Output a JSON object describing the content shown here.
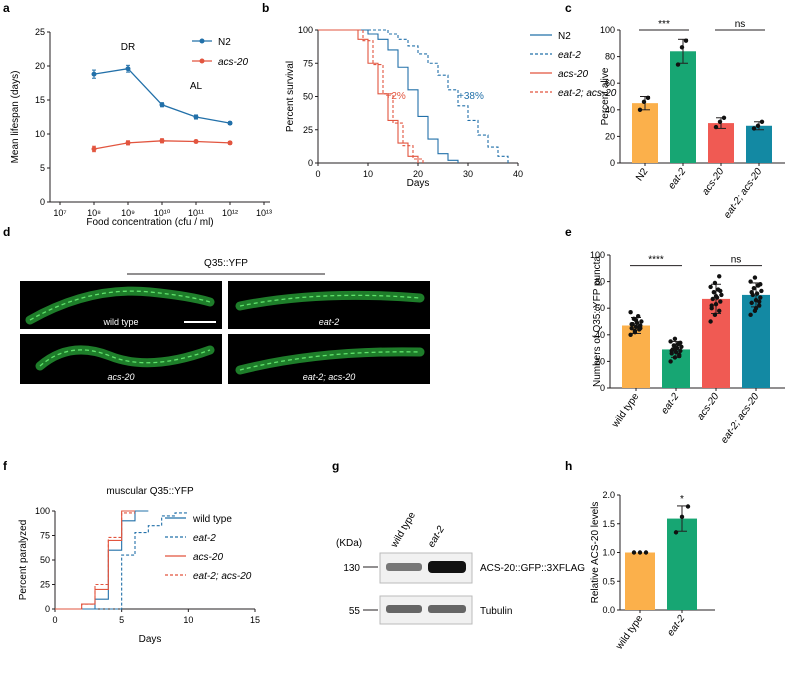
{
  "chart_data": [
    {
      "panel": "a",
      "type": "line",
      "xlabel": "Food concentration (cfu / ml)",
      "ylabel": "Mean lifespan (days)",
      "xticks": [
        "10⁷",
        "10⁸",
        "10⁹",
        "10¹⁰",
        "10¹¹",
        "10¹²",
        "10¹³"
      ],
      "yticks": [
        "0",
        "5",
        "10",
        "15",
        "20",
        "25"
      ],
      "ylim": [
        0,
        25
      ],
      "x": [
        8,
        9,
        10,
        11,
        12
      ],
      "series": [
        {
          "name": "N2",
          "values": [
            18.8,
            19.6,
            14.3,
            12.5,
            11.6
          ],
          "err": [
            0.6,
            0.5,
            0.3,
            0.3,
            0.2
          ],
          "color": "#2270a9"
        },
        {
          "name": "acs-20",
          "values": [
            7.8,
            8.7,
            9.0,
            8.9,
            8.7
          ],
          "err": [
            0.4,
            0.3,
            0.3,
            0.2,
            0.2
          ],
          "color": "#e2553f"
        }
      ],
      "annotations": [
        "DR",
        "AL"
      ]
    },
    {
      "panel": "b",
      "type": "line",
      "xlabel": "Days",
      "ylabel": "Percent survival",
      "xticks": [
        "0",
        "10",
        "20",
        "30",
        "40"
      ],
      "yticks": [
        "0",
        "25",
        "50",
        "75",
        "100"
      ],
      "xlim": [
        0,
        40
      ],
      "ylim": [
        0,
        100
      ],
      "series": [
        {
          "name": "N2",
          "values": [
            [
              0,
              100
            ],
            [
              8,
              100
            ],
            [
              10,
              97
            ],
            [
              12,
              93
            ],
            [
              14,
              85
            ],
            [
              16,
              72
            ],
            [
              18,
              55
            ],
            [
              20,
              35
            ],
            [
              22,
              18
            ],
            [
              24,
              7
            ],
            [
              26,
              2
            ],
            [
              28,
              0
            ]
          ],
          "color": "#2270a9",
          "dash": false
        },
        {
          "name": "eat-2",
          "values": [
            [
              0,
              100
            ],
            [
              12,
              100
            ],
            [
              14,
              97
            ],
            [
              16,
              93
            ],
            [
              18,
              88
            ],
            [
              20,
              82
            ],
            [
              22,
              75
            ],
            [
              24,
              66
            ],
            [
              26,
              55
            ],
            [
              28,
              43
            ],
            [
              30,
              32
            ],
            [
              32,
              21
            ],
            [
              34,
              12
            ],
            [
              36,
              5
            ],
            [
              38,
              0
            ]
          ],
          "color": "#2270a9",
          "dash": true
        },
        {
          "name": "acs-20",
          "values": [
            [
              0,
              100
            ],
            [
              6,
              100
            ],
            [
              8,
              93
            ],
            [
              10,
              75
            ],
            [
              12,
              52
            ],
            [
              14,
              32
            ],
            [
              16,
              15
            ],
            [
              18,
              5
            ],
            [
              20,
              0
            ]
          ],
          "color": "#e2553f",
          "dash": false
        },
        {
          "name": "eat-2; acs-20",
          "values": [
            [
              0,
              100
            ],
            [
              7,
              100
            ],
            [
              9,
              92
            ],
            [
              11,
              74
            ],
            [
              13,
              52
            ],
            [
              15,
              30
            ],
            [
              17,
              13
            ],
            [
              19,
              3
            ],
            [
              21,
              0
            ]
          ],
          "color": "#e2553f",
          "dash": true
        }
      ],
      "annotations": [
        "+2%",
        "+38%"
      ]
    },
    {
      "panel": "c",
      "type": "bar",
      "ylabel": "Percent alive",
      "categories": [
        "N2",
        "eat-2",
        "acs-20",
        "eat-2; acs-20"
      ],
      "values": [
        45,
        84,
        30,
        28
      ],
      "err": [
        5,
        9,
        4,
        3
      ],
      "points": [
        [
          40,
          46,
          49
        ],
        [
          74,
          87,
          92
        ],
        [
          27,
          31,
          34
        ],
        [
          26,
          28,
          31
        ]
      ],
      "colors": [
        "#fbb04b",
        "#17a673",
        "#f05a53",
        "#1389a3"
      ],
      "yticks": [
        "0",
        "20",
        "40",
        "60",
        "80",
        "100"
      ],
      "ylim": [
        0,
        100
      ],
      "significance": [
        "***",
        "ns"
      ]
    },
    {
      "panel": "e",
      "type": "bar",
      "ylabel": "Numbers of Q35::YFP puncta",
      "categories": [
        "wild type",
        "eat-2",
        "acs-20",
        "eat-2; acs-20"
      ],
      "values": [
        47,
        29,
        67,
        70
      ],
      "err": [
        6,
        6,
        11,
        9
      ],
      "points": [
        [
          40,
          42,
          44,
          45,
          46,
          47,
          48,
          49,
          50,
          52,
          54,
          57,
          43,
          46,
          48,
          51,
          45
        ],
        [
          20,
          23,
          25,
          26,
          27,
          28,
          29,
          30,
          31,
          32,
          33,
          35,
          37,
          24,
          28,
          30,
          34
        ],
        [
          50,
          55,
          58,
          60,
          63,
          65,
          67,
          68,
          70,
          72,
          74,
          76,
          79,
          84,
          62,
          69,
          73
        ],
        [
          55,
          58,
          62,
          64,
          66,
          68,
          70,
          71,
          73,
          75,
          77,
          80,
          83,
          65,
          72,
          60,
          78
        ]
      ],
      "colors": [
        "#fbb04b",
        "#17a673",
        "#f05a53",
        "#1389a3"
      ],
      "yticks": [
        "0",
        "20",
        "40",
        "60",
        "80",
        "100"
      ],
      "ylim": [
        0,
        100
      ],
      "significance": [
        "****",
        "ns"
      ]
    },
    {
      "panel": "f",
      "type": "line",
      "title": "muscular Q35::YFP",
      "xlabel": "Days",
      "ylabel": "Percent paralyzed",
      "xticks": [
        "0",
        "5",
        "10",
        "15"
      ],
      "yticks": [
        "0",
        "25",
        "50",
        "75",
        "100"
      ],
      "xlim": [
        0,
        15
      ],
      "ylim": [
        0,
        100
      ],
      "series": [
        {
          "name": "wild type",
          "values": [
            [
              0,
              0
            ],
            [
              3,
              0
            ],
            [
              3,
              10
            ],
            [
              4,
              10
            ],
            [
              4,
              60
            ],
            [
              5,
              60
            ],
            [
              5,
              90
            ],
            [
              6,
              90
            ],
            [
              6,
              100
            ],
            [
              7,
              100
            ]
          ],
          "color": "#2270a9",
          "dash": false
        },
        {
          "name": "eat-2",
          "values": [
            [
              0,
              0
            ],
            [
              5,
              0
            ],
            [
              5,
              55
            ],
            [
              6,
              55
            ],
            [
              6,
              78
            ],
            [
              7,
              78
            ],
            [
              7,
              85
            ],
            [
              8,
              85
            ],
            [
              8,
              95
            ],
            [
              9,
              95
            ],
            [
              9,
              98
            ],
            [
              10,
              98
            ]
          ],
          "color": "#2270a9",
          "dash": true
        },
        {
          "name": "acs-20",
          "values": [
            [
              0,
              0
            ],
            [
              2,
              0
            ],
            [
              2,
              5
            ],
            [
              3,
              5
            ],
            [
              3,
              20
            ],
            [
              4,
              20
            ],
            [
              4,
              70
            ],
            [
              5,
              70
            ],
            [
              5,
              100
            ],
            [
              6,
              100
            ]
          ],
          "color": "#e2553f",
          "dash": false
        },
        {
          "name": "eat-2; acs-20",
          "values": [
            [
              0,
              0
            ],
            [
              2,
              0
            ],
            [
              2,
              5
            ],
            [
              3,
              5
            ],
            [
              3,
              25
            ],
            [
              4,
              25
            ],
            [
              4,
              73
            ],
            [
              5,
              73
            ],
            [
              5,
              98
            ],
            [
              6,
              98
            ]
          ],
          "color": "#e2553f",
          "dash": true
        }
      ]
    },
    {
      "panel": "h",
      "type": "bar",
      "ylabel": "Relative ACS-20 levels",
      "categories": [
        "wild type",
        "eat-2"
      ],
      "values": [
        1.0,
        1.59
      ],
      "err": [
        0,
        0.22
      ],
      "points": [
        [
          1.0,
          1.0,
          1.0
        ],
        [
          1.35,
          1.62,
          1.8
        ]
      ],
      "colors": [
        "#fbb04b",
        "#17a673"
      ],
      "yticks": [
        "0.0",
        "0.5",
        "1.0",
        "1.5",
        "2.0"
      ],
      "ylim": [
        0,
        2.0
      ],
      "significance": [
        "*"
      ]
    }
  ],
  "panels": {
    "labels": [
      "a",
      "b",
      "c",
      "d",
      "e",
      "f",
      "g",
      "h"
    ],
    "d": {
      "title": "Q35::YFP",
      "images": [
        {
          "label": "wild type",
          "italic": false
        },
        {
          "label": "eat-2",
          "italic": true
        },
        {
          "label": "acs-20",
          "italic": true
        },
        {
          "label": "eat-2; acs-20",
          "italic": true
        }
      ]
    },
    "g": {
      "kda_label": "(KDa)",
      "lanes": [
        "wild type",
        "eat-2"
      ],
      "markers": [
        "130",
        "55"
      ],
      "bands": [
        "ACS-20::GFP::3XFLAG",
        "Tubulin"
      ]
    }
  }
}
